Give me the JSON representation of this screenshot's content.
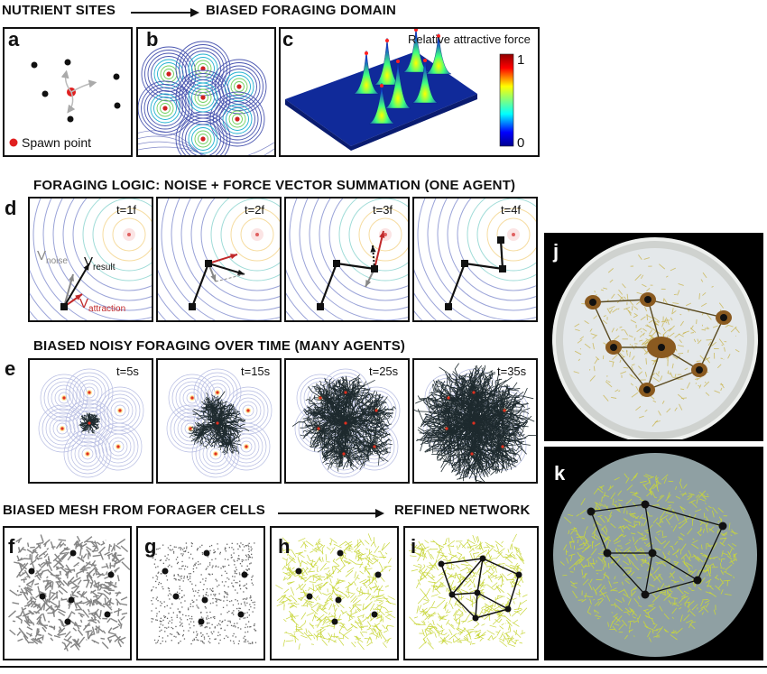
{
  "headers": {
    "top_left": "NUTRIENT SITES",
    "top_right": "BIASED FORAGING DOMAIN",
    "logic": "FORAGING LOGIC: NOISE + FORCE VECTOR SUMMATION (ONE AGENT)",
    "noisy": "BIASED NOISY FORAGING OVER TIME (MANY AGENTS)",
    "mesh_left": "BIASED MESH FROM FORAGER CELLS",
    "mesh_right": "REFINED NETWORK"
  },
  "panel_labels": {
    "a": "a",
    "b": "b",
    "c": "c",
    "d": "d",
    "e": "e",
    "f": "f",
    "g": "g",
    "h": "h",
    "i": "i",
    "j": "j",
    "k": "k"
  },
  "panel_a": {
    "legend": "Spawn point",
    "spawn_color": "#e02020"
  },
  "panel_c": {
    "title": "Relative attractive force",
    "colorbar_max": "1",
    "colorbar_min": "0"
  },
  "panel_d": {
    "frames": [
      "t=1f",
      "t=2f",
      "t=3f",
      "t=4f"
    ],
    "vectors": {
      "noise_main": "V",
      "noise_sub": "noise",
      "result_main": "V",
      "result_sub": "result",
      "attraction_main": "V",
      "attraction_sub": "attraction"
    }
  },
  "panel_e": {
    "frames": [
      "t=5s",
      "t=15s",
      "t=25s",
      "t=35s"
    ]
  },
  "colors": {
    "mesh_green": "#c8d63a",
    "mesh_gray": "#777777",
    "attraction_red": "#c0282a",
    "contour_blue": "#4a56b0",
    "dish_background": "#000000",
    "sim_disc": "#8fa0a3"
  }
}
